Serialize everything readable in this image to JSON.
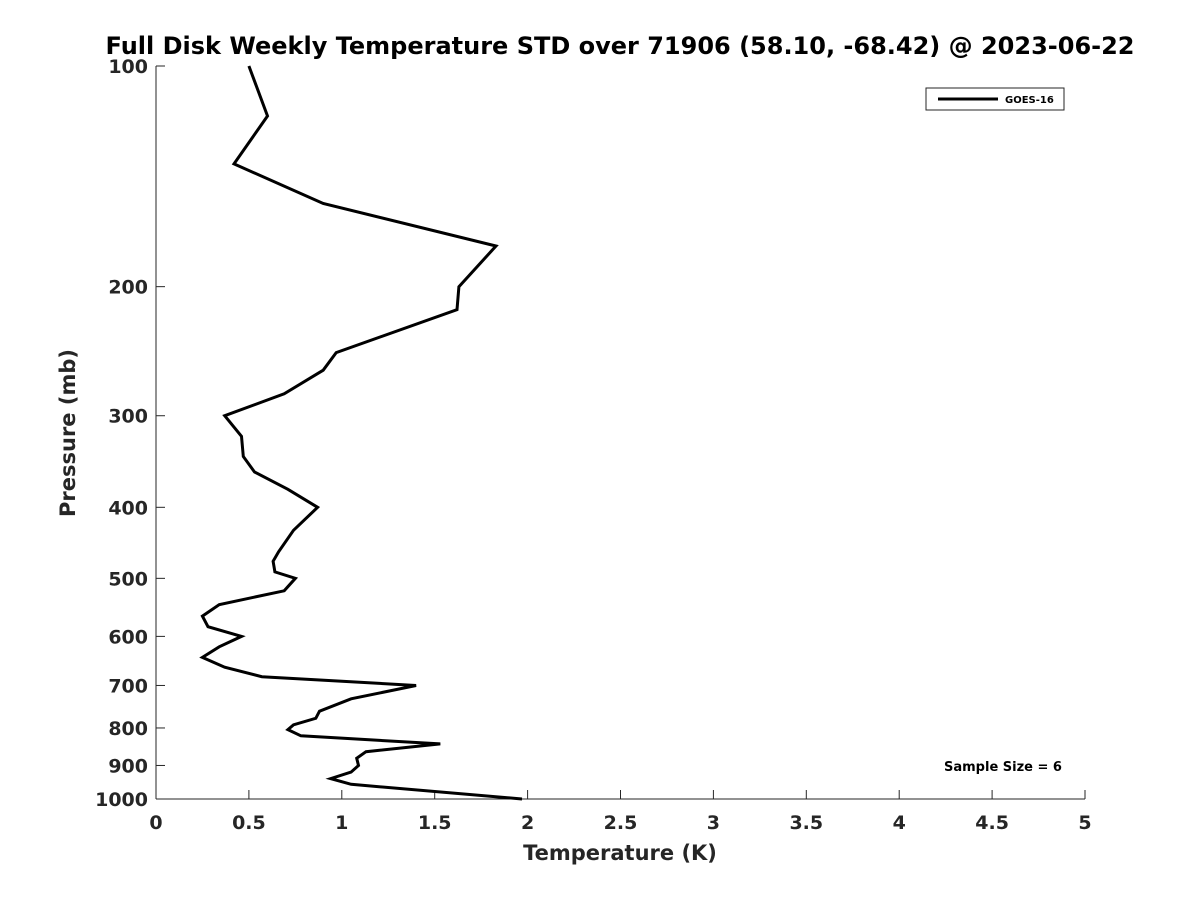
{
  "chart_data": {
    "type": "line",
    "title": "Full Disk Weekly Temperature STD over 71906 (58.10, -68.42) @ 2023-06-22",
    "xlabel": "Temperature (K)",
    "ylabel": "Pressure (mb)",
    "xlim": [
      0,
      5
    ],
    "ylim": [
      100,
      1000
    ],
    "y_scale": "log",
    "y_reversed": true,
    "x_ticks": [
      "0",
      "0.5",
      "1",
      "1.5",
      "2",
      "2.5",
      "3",
      "3.5",
      "4",
      "4.5",
      "5"
    ],
    "y_ticks": [
      "100",
      "200",
      "300",
      "400",
      "500",
      "600",
      "700",
      "800",
      "900",
      "1000"
    ],
    "grid": false,
    "legend": {
      "position": "top-right",
      "entries": [
        "GOES-16"
      ]
    },
    "annotation": "Sample Size = 6",
    "series": [
      {
        "name": "GOES-16",
        "color": "#000000",
        "points": [
          [
            0.5,
            100
          ],
          [
            0.6,
            117
          ],
          [
            0.42,
            136
          ],
          [
            0.9,
            154
          ],
          [
            1.83,
            176
          ],
          [
            1.63,
            200
          ],
          [
            1.62,
            215
          ],
          [
            0.97,
            246
          ],
          [
            0.9,
            260
          ],
          [
            0.69,
            280
          ],
          [
            0.37,
            300
          ],
          [
            0.46,
            320
          ],
          [
            0.47,
            341
          ],
          [
            0.53,
            358
          ],
          [
            0.71,
            378
          ],
          [
            0.87,
            400
          ],
          [
            0.74,
            430
          ],
          [
            0.66,
            460
          ],
          [
            0.63,
            474
          ],
          [
            0.64,
            490
          ],
          [
            0.75,
            500
          ],
          [
            0.69,
            520
          ],
          [
            0.34,
            543
          ],
          [
            0.25,
            563
          ],
          [
            0.28,
            582
          ],
          [
            0.46,
            600
          ],
          [
            0.34,
            620
          ],
          [
            0.25,
            641
          ],
          [
            0.37,
            661
          ],
          [
            0.57,
            681
          ],
          [
            1.4,
            700
          ],
          [
            1.05,
            730
          ],
          [
            0.88,
            759
          ],
          [
            0.86,
            776
          ],
          [
            0.74,
            792
          ],
          [
            0.71,
            804
          ],
          [
            0.78,
            820
          ],
          [
            1.53,
            841
          ],
          [
            1.13,
            862
          ],
          [
            1.08,
            880
          ],
          [
            1.09,
            900
          ],
          [
            1.05,
            919
          ],
          [
            0.94,
            938
          ],
          [
            1.05,
            955
          ],
          [
            1.97,
            1000
          ]
        ]
      }
    ]
  }
}
